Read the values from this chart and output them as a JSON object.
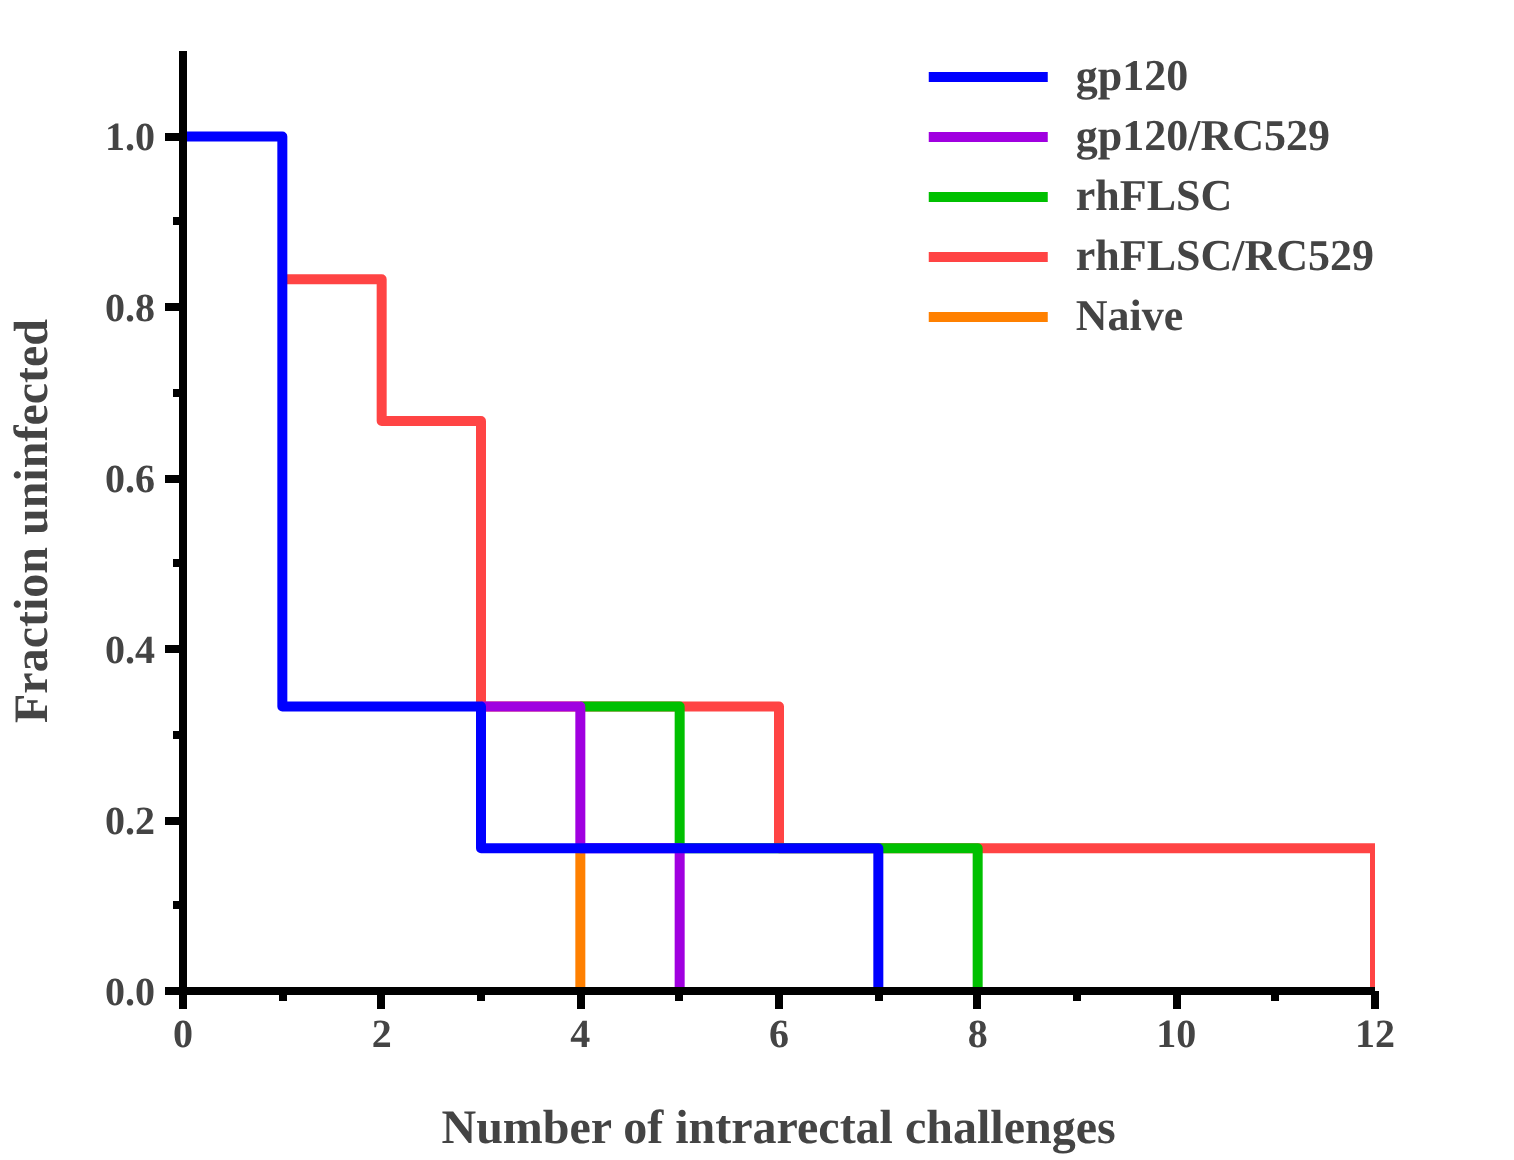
{
  "chart_data": {
    "type": "step",
    "xlabel": "Number of intrarectal challenges",
    "ylabel": "Fraction uninfected",
    "xlim": [
      0,
      12
    ],
    "ylim": [
      0,
      1.1
    ],
    "xticks": [
      0,
      {
        "value": 1,
        "label": null
      },
      2,
      {
        "value": 3,
        "label": null
      },
      4,
      {
        "value": 5,
        "label": null
      },
      6,
      {
        "value": 7,
        "label": null
      },
      8,
      {
        "value": 9,
        "label": null
      },
      10,
      {
        "value": 11,
        "label": null
      },
      12
    ],
    "yticks": [
      {
        "value": 0,
        "label": "0.0"
      },
      {
        "value": 0.1,
        "label": null
      },
      {
        "value": 0.2,
        "label": "0.2"
      },
      {
        "value": 0.3,
        "label": null
      },
      {
        "value": 0.4,
        "label": "0.4"
      },
      {
        "value": 0.5,
        "label": null
      },
      {
        "value": 0.6,
        "label": "0.6"
      },
      {
        "value": 0.7,
        "label": null
      },
      {
        "value": 0.8,
        "label": "0.8"
      },
      {
        "value": 0.9,
        "label": null
      },
      {
        "value": 1.0,
        "label": "1.0"
      }
    ],
    "grid": false,
    "legend": "top right",
    "line_style": "solid",
    "marker": "none",
    "series": [
      {
        "name": "gp120",
        "color": "#0000ff",
        "x": [
          0,
          1,
          3,
          7
        ],
        "values": [
          1,
          0.333,
          0.167,
          0
        ]
      },
      {
        "name": "gp120/RC529",
        "color": "#a000e0",
        "x": [
          3,
          4,
          5
        ],
        "values": [
          0.333,
          0.167,
          0
        ]
      },
      {
        "name": "rhFLSC",
        "color": "#00c000",
        "x": [
          4,
          5,
          8
        ],
        "values": [
          0.333,
          0.167,
          0
        ]
      },
      {
        "name": "rhFLSC/RC529",
        "color": "#ff4444",
        "x": [
          1,
          2,
          3,
          6,
          12
        ],
        "values": [
          0.833,
          0.667,
          0.333,
          0.167,
          0
        ]
      },
      {
        "name": "Naive",
        "color": "#ff8000",
        "x": [
          4,
          4
        ],
        "values": [
          0.167,
          0
        ]
      }
    ]
  }
}
